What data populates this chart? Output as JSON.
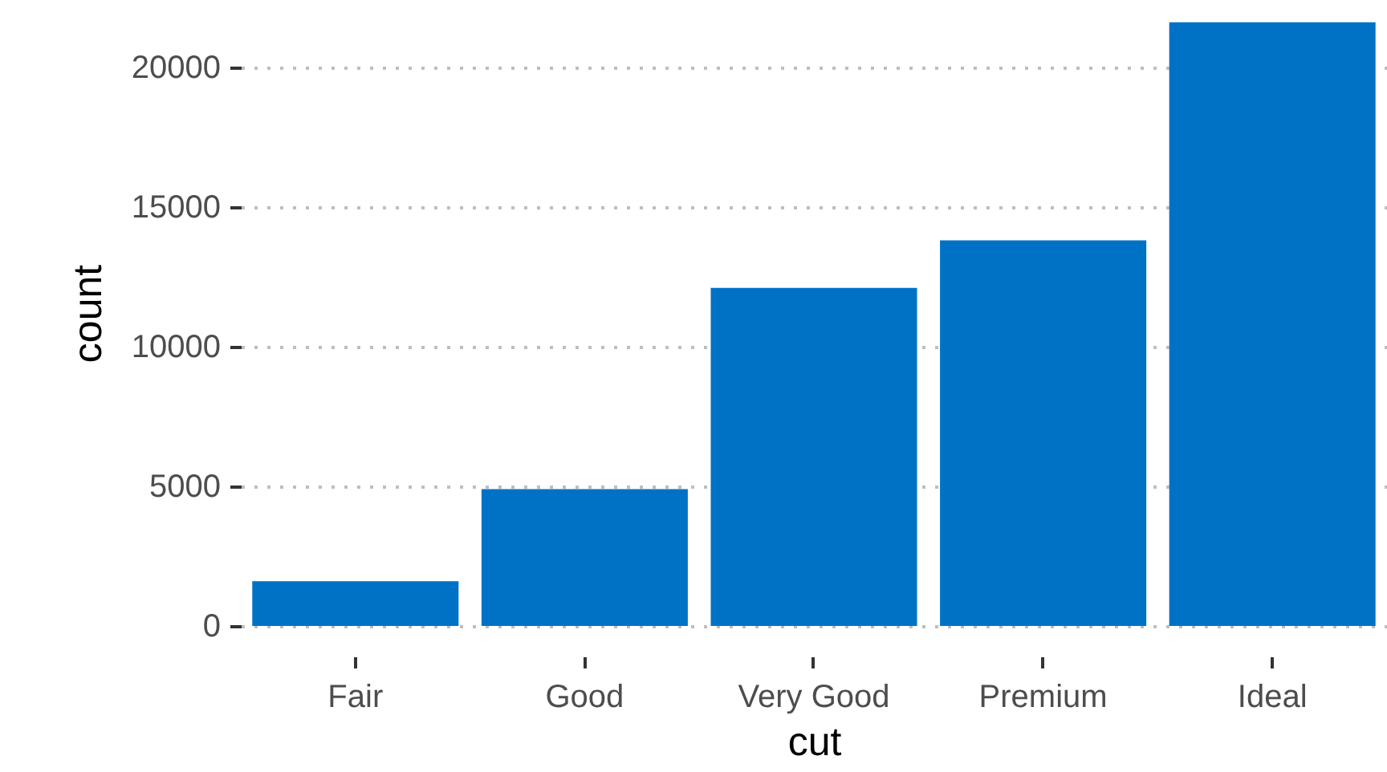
{
  "chart_data": {
    "type": "bar",
    "xlabel": "cut",
    "ylabel": "count",
    "categories": [
      "Fair",
      "Good",
      "Very Good",
      "Premium",
      "Ideal"
    ],
    "values": [
      1600,
      4900,
      12100,
      13800,
      21600
    ],
    "color": "#0072c6",
    "ylim": [
      0,
      22400
    ],
    "yticks": [
      0,
      5000,
      10000,
      15000,
      20000
    ],
    "grid": "y"
  }
}
